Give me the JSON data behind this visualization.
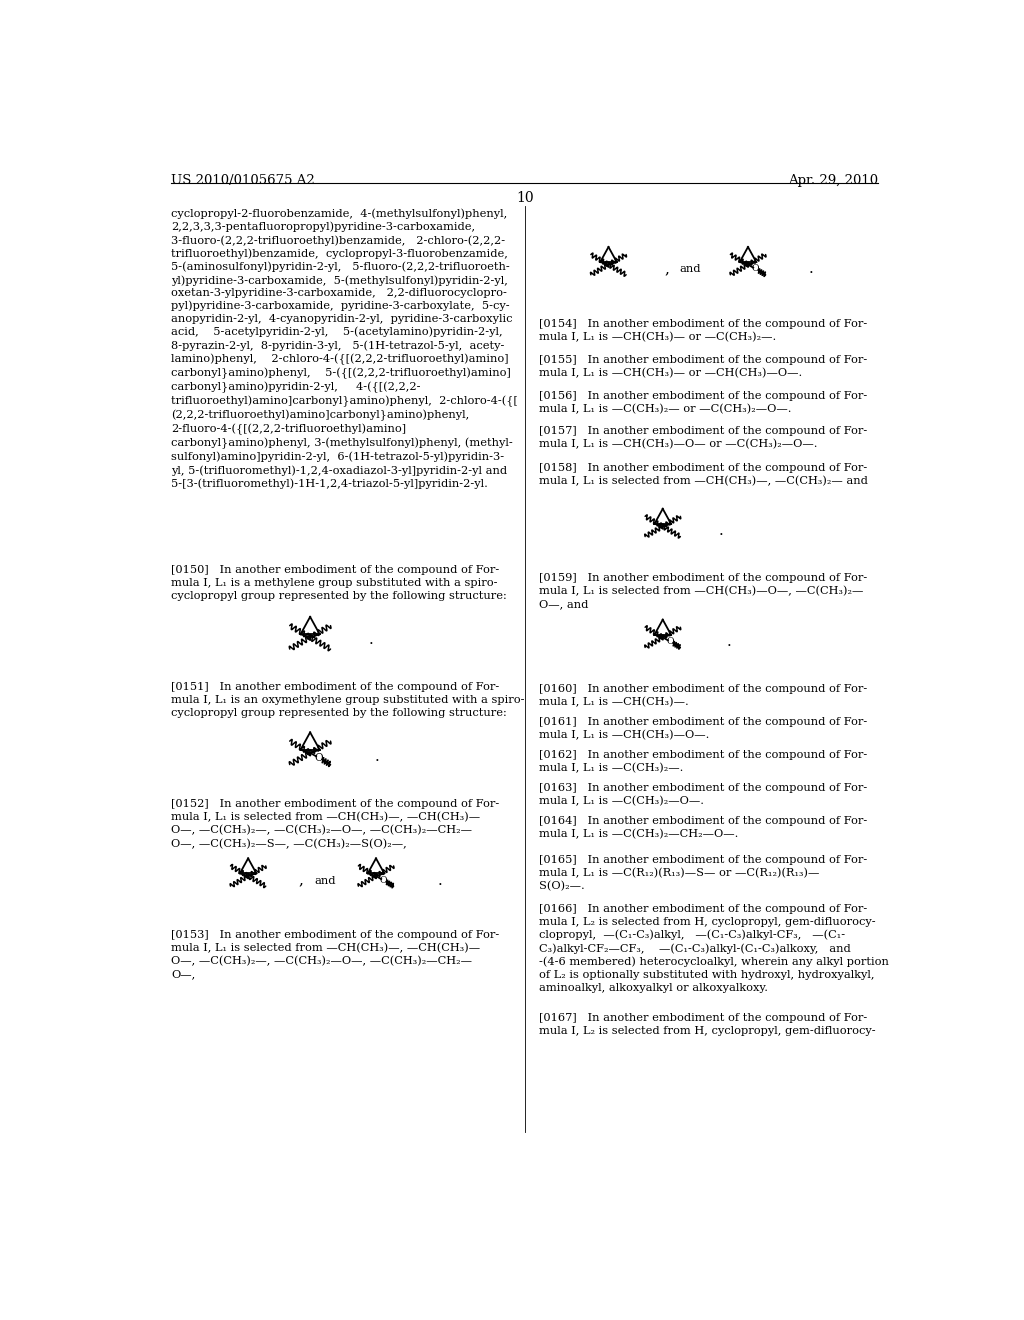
{
  "bg_color": "#ffffff",
  "header_left": "US 2010/0105675 A2",
  "header_right": "Apr. 29, 2010",
  "page_number": "10",
  "left_col_text": "cyclopropyl-2-fluorobenzamide,  4-(methylsulfonyl)phenyl,\n2,2,3,3,3-pentafluoropropyl)pyridine-3-carboxamide,\n3-fluoro-(2,2,2-trifluoroethyl)benzamide,   2-chloro-(2,2,2-\ntrifluoroethyl)benzamide,  cyclopropyl-3-fluorobenzamide,\n5-(aminosulfonyl)pyridin-2-yl,   5-fluoro-(2,2,2-trifluoroeth-\nyl)pyridine-3-carboxamide,  5-(methylsulfonyl)pyridin-2-yl,\noxetan-3-ylpyridine-3-carboxamide,   2,2-difluorocyclopro-\npyl)pyridine-3-carboxamide,  pyridine-3-carboxylate,  5-cy-\nanopyridin-2-yl,  4-cyanopyridin-2-yl,  pyridine-3-carboxylic\nacid,    5-acetylpyridin-2-yl,    5-(acetylamino)pyridin-2-yl,\n8-pyrazin-2-yl,  8-pyridin-3-yl,   5-(1H-tetrazol-5-yl,  acety-\nlamino)phenyl,    2-chloro-4-({[(2,2,2-trifluoroethyl)amino]\ncarbonyl}amino)phenyl,    5-({[(2,2,2-trifluoroethyl)amino]\ncarbonyl}amino)pyridin-2-yl,     4-({[(2,2,2-\ntrifluoroethyl)amino]carbonyl}amino)phenyl,  2-chloro-4-({[\n(2,2,2-trifluoroethyl)amino]carbonyl}amino)phenyl,\n2-fluoro-4-({[(2,2,2-trifluoroethyl)amino]\ncarbonyl}amino)phenyl, 3-(methylsulfonyl)phenyl, (methyl-\nsulfonyl)amino]pyridin-2-yl,  6-(1H-tetrazol-5-yl)pyridin-3-\nyl, 5-(trifluoromethyl)-1,2,4-oxadiazol-3-yl]pyridin-2-yl and\n5-[3-(trifluoromethyl)-1H-1,2,4-triazol-5-yl]pyridin-2-yl.",
  "para_0150": "[0150]   In another embodiment of the compound of For-\nmula I, L₁ is a methylene group substituted with a spiro-\ncyclopropyl group represented by the following structure:",
  "para_0151": "[0151]   In another embodiment of the compound of For-\nmula I, L₁ is an oxymethylene group substituted with a spiro-\ncyclopropyl group represented by the following structure:",
  "para_0152": "[0152]   In another embodiment of the compound of For-\nmula I, L₁ is selected from —CH(CH₃)—, —CH(CH₃)—\nO—, —C(CH₃)₂—, —C(CH₃)₂—O—, —C(CH₃)₂—CH₂—\nO—, —C(CH₃)₂—S—, —C(CH₃)₂—S(O)₂—,",
  "para_0153": "[0153]   In another embodiment of the compound of For-\nmula I, L₁ is selected from —CH(CH₃)—, —CH(CH₃)—\nO—, —C(CH₃)₂—, —C(CH₃)₂—O—, —C(CH₃)₂—CH₂—\nO—,",
  "para_0154": "[0154]   In another embodiment of the compound of For-\nmula I, L₁ is —CH(CH₃)— or —C(CH₃)₂—.",
  "para_0155": "[0155]   In another embodiment of the compound of For-\nmula I, L₁ is —CH(CH₃)— or —CH(CH₃)—O—.",
  "para_0156": "[0156]   In another embodiment of the compound of For-\nmula I, L₁ is —C(CH₃)₂— or —C(CH₃)₂—O—.",
  "para_0157": "[0157]   In another embodiment of the compound of For-\nmula I, L₁ is —CH(CH₃)—O— or —C(CH₃)₂—O—.",
  "para_0158": "[0158]   In another embodiment of the compound of For-\nmula I, L₁ is selected from —CH(CH₃)—, —C(CH₃)₂— and",
  "para_0159": "[0159]   In another embodiment of the compound of For-\nmula I, L₁ is selected from —CH(CH₃)—O—, —C(CH₃)₂—\nO—, and",
  "para_0160": "[0160]   In another embodiment of the compound of For-\nmula I, L₁ is —CH(CH₃)—.",
  "para_0161": "[0161]   In another embodiment of the compound of For-\nmula I, L₁ is —CH(CH₃)—O—.",
  "para_0162": "[0162]   In another embodiment of the compound of For-\nmula I, L₁ is —C(CH₃)₂—.",
  "para_0163": "[0163]   In another embodiment of the compound of For-\nmula I, L₁ is —C(CH₃)₂—O—.",
  "para_0164": "[0164]   In another embodiment of the compound of For-\nmula I, L₁ is —C(CH₃)₂—CH₂—O—.",
  "para_0165": "[0165]   In another embodiment of the compound of For-\nmula I, L₁ is —C(R₁₂)(R₁₃)—S— or —C(R₁₂)(R₁₃)—\nS(O)₂—.",
  "para_0166": "[0166]   In another embodiment of the compound of For-\nmula I, L₂ is selected from H, cyclopropyl, gem-difluorocy-\nclopropyl,  —(C₁-C₃)alkyl,   —(C₁-C₃)alkyl-CF₃,   —(C₁-\nC₃)alkyl-CF₂—CF₃,    —(C₁-C₃)alkyl-(C₁-C₃)alkoxy,   and\n-(4-6 membered) heterocycloalkyl, wherein any alkyl portion\nof L₂ is optionally substituted with hydroxyl, hydroxyalkyl,\naminoalkyl, alkoxyalkyl or alkoxyalkoxy.",
  "para_0167": "[0167]   In another embodiment of the compound of For-\nmula I, L₂ is selected from H, cyclopropyl, gem-difluorocy-"
}
